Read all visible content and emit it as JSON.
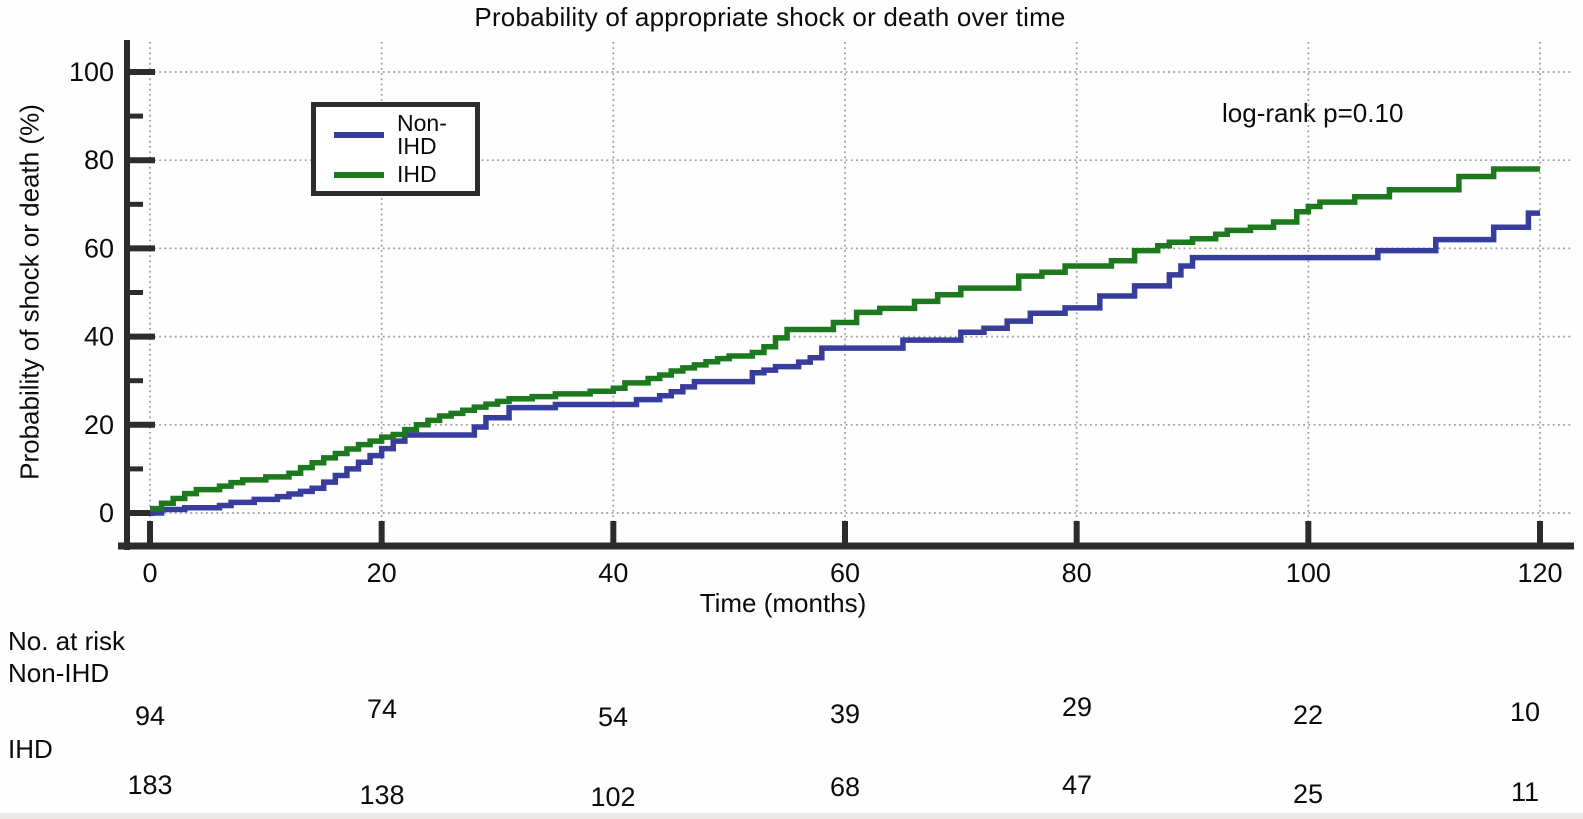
{
  "title": "Probability of appropriate shock or death over time",
  "annotation": "log-rank p=0.10",
  "legend": {
    "items": [
      {
        "label": "Non-IHD",
        "color": "#383d9d"
      },
      {
        "label": "IHD",
        "color": "#1c791e"
      }
    ]
  },
  "axes": {
    "x_label": "Time (months)",
    "y_label": "Probability of shock or death (%)",
    "x_tick_labels": [
      "0",
      "20",
      "40",
      "60",
      "80",
      "100",
      "120"
    ],
    "y_tick_labels": [
      "0",
      "20",
      "40",
      "60",
      "80",
      "100"
    ]
  },
  "risk_table": {
    "header": "No. at risk",
    "time_points": [
      0,
      20,
      40,
      60,
      80,
      100,
      120
    ],
    "rows": [
      {
        "label": "Non-IHD",
        "counts": [
          "94",
          "74",
          "54",
          "39",
          "29",
          "22",
          "10"
        ]
      },
      {
        "label": "IHD",
        "counts": [
          "183",
          "138",
          "102",
          "68",
          "47",
          "25",
          "11"
        ]
      }
    ]
  },
  "chart_data": {
    "type": "line",
    "subtype": "kaplan-meier-step",
    "title": "Probability of appropriate shock or death over time",
    "xlabel": "Time (months)",
    "ylabel": "Probability of shock or death (%)",
    "xlim": [
      0,
      120
    ],
    "ylim": [
      0,
      100
    ],
    "x_tick_values": [
      0,
      20,
      40,
      60,
      80,
      100,
      120
    ],
    "y_tick_values": [
      0,
      20,
      40,
      60,
      80,
      100
    ],
    "y_minor_tick_values": [
      10,
      30,
      50,
      70,
      90
    ],
    "grid": true,
    "grid_style": "dotted",
    "legend_position": "upper-left-inside",
    "annotation": "log-rank p=0.10",
    "axis_color": "#2c2c2c",
    "grid_color": "#9c9c9c",
    "series": [
      {
        "name": "Non-IHD",
        "color": "#383d9d",
        "points": [
          [
            0,
            0
          ],
          [
            1,
            0.8
          ],
          [
            3,
            1.2
          ],
          [
            6,
            1.7
          ],
          [
            7,
            2.4
          ],
          [
            9,
            3.1
          ],
          [
            11,
            3.7
          ],
          [
            12,
            4.3
          ],
          [
            13,
            4.9
          ],
          [
            14,
            5.6
          ],
          [
            15,
            7
          ],
          [
            16,
            8.5
          ],
          [
            17,
            10
          ],
          [
            18,
            11.5
          ],
          [
            19,
            13
          ],
          [
            20,
            14.6
          ],
          [
            21,
            16.3
          ],
          [
            22,
            17.7
          ],
          [
            28,
            19.5
          ],
          [
            29,
            21.6
          ],
          [
            31,
            23.9
          ],
          [
            35,
            24.6
          ],
          [
            42,
            25.7
          ],
          [
            44,
            26.6
          ],
          [
            45,
            27.5
          ],
          [
            46,
            28.6
          ],
          [
            47,
            29.8
          ],
          [
            52,
            31.8
          ],
          [
            53,
            32.4
          ],
          [
            54,
            33.2
          ],
          [
            56,
            34.2
          ],
          [
            57,
            35.2
          ],
          [
            58,
            37.4
          ],
          [
            65,
            39.2
          ],
          [
            70,
            41
          ],
          [
            72,
            41.9
          ],
          [
            74,
            43.5
          ],
          [
            76,
            45.3
          ],
          [
            79,
            46.5
          ],
          [
            82,
            49.2
          ],
          [
            85,
            51.5
          ],
          [
            88,
            54
          ],
          [
            89,
            56
          ],
          [
            90,
            57.9
          ],
          [
            106,
            59.5
          ],
          [
            111,
            62
          ],
          [
            116,
            64.8
          ],
          [
            119,
            68
          ],
          [
            120,
            68
          ]
        ]
      },
      {
        "name": "IHD",
        "color": "#1c791e",
        "points": [
          [
            0,
            1
          ],
          [
            1,
            2.2
          ],
          [
            2,
            3.3
          ],
          [
            3,
            4.4
          ],
          [
            4,
            5.3
          ],
          [
            6,
            6.1
          ],
          [
            7,
            6.9
          ],
          [
            8,
            7.5
          ],
          [
            10,
            8.2
          ],
          [
            12,
            9
          ],
          [
            13,
            10.3
          ],
          [
            14,
            11.4
          ],
          [
            15,
            12.5
          ],
          [
            16,
            13.5
          ],
          [
            17,
            14.5
          ],
          [
            18,
            15.5
          ],
          [
            19,
            16.3
          ],
          [
            20,
            17.2
          ],
          [
            21,
            17.8
          ],
          [
            22,
            18.9
          ],
          [
            23,
            20
          ],
          [
            24,
            21
          ],
          [
            25,
            22
          ],
          [
            26,
            22.6
          ],
          [
            27,
            23.3
          ],
          [
            28,
            24
          ],
          [
            29,
            24.7
          ],
          [
            30,
            25.3
          ],
          [
            31,
            25.9
          ],
          [
            33,
            26.4
          ],
          [
            35,
            27
          ],
          [
            38,
            27.6
          ],
          [
            40,
            28.3
          ],
          [
            41,
            29.5
          ],
          [
            43,
            30.5
          ],
          [
            44,
            31.3
          ],
          [
            45,
            32.2
          ],
          [
            46,
            32.9
          ],
          [
            47,
            33.6
          ],
          [
            48,
            34.3
          ],
          [
            49,
            35
          ],
          [
            50,
            35.6
          ],
          [
            52,
            36.4
          ],
          [
            53,
            37.7
          ],
          [
            54,
            39.7
          ],
          [
            55,
            41.6
          ],
          [
            59,
            43.2
          ],
          [
            61,
            45.5
          ],
          [
            63,
            46.4
          ],
          [
            66,
            48
          ],
          [
            68,
            49.5
          ],
          [
            70,
            51
          ],
          [
            75,
            53.7
          ],
          [
            77,
            54.6
          ],
          [
            79,
            56
          ],
          [
            83,
            57.2
          ],
          [
            85,
            59.5
          ],
          [
            87,
            60.6
          ],
          [
            88,
            61.4
          ],
          [
            90,
            62.2
          ],
          [
            92,
            63.2
          ],
          [
            93,
            64.1
          ],
          [
            95,
            64.8
          ],
          [
            97,
            66
          ],
          [
            99,
            68.3
          ],
          [
            100,
            69.5
          ],
          [
            101,
            70.5
          ],
          [
            104,
            71.7
          ],
          [
            107,
            73.3
          ],
          [
            113,
            76.3
          ],
          [
            116,
            78
          ],
          [
            120,
            78
          ]
        ]
      }
    ],
    "no_at_risk": {
      "time_points": [
        0,
        20,
        40,
        60,
        80,
        100,
        120
      ],
      "Non-IHD": [
        94,
        74,
        54,
        39,
        29,
        22,
        10
      ],
      "IHD": [
        183,
        138,
        102,
        68,
        47,
        25,
        11
      ]
    }
  }
}
